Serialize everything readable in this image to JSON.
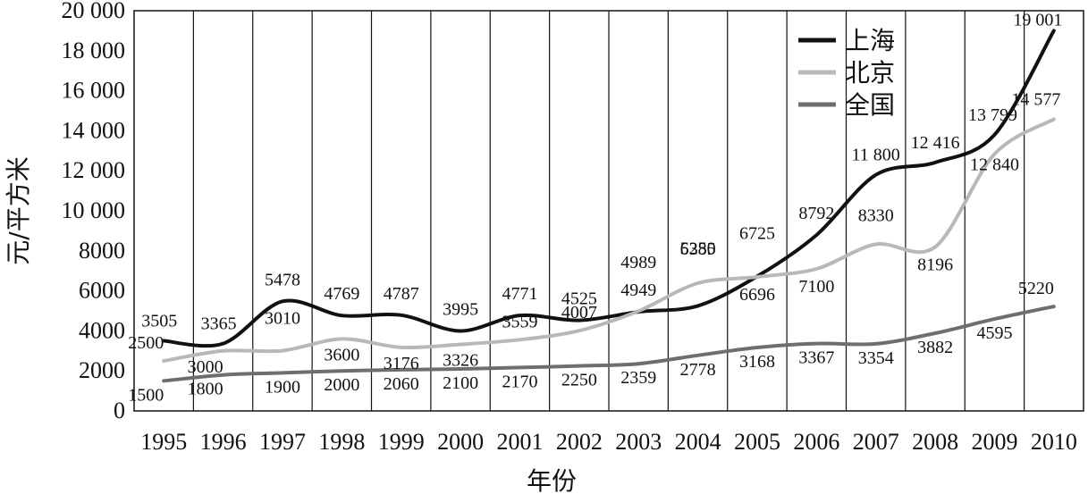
{
  "chart_data": {
    "type": "line",
    "title": "",
    "xlabel": "年份",
    "ylabel": "元/平方米",
    "x": [
      "1995",
      "1996",
      "1997",
      "1998",
      "1999",
      "2000",
      "2001",
      "2002",
      "2003",
      "2004",
      "2005",
      "2006",
      "2007",
      "2008",
      "2009",
      "2010"
    ],
    "ylim": [
      0,
      20000
    ],
    "y_ticks": [
      0,
      2000,
      4000,
      6000,
      8000,
      10000,
      12000,
      14000,
      16000,
      18000,
      20000
    ],
    "y_tick_labels": [
      "0",
      "2000",
      "4000",
      "6000",
      "8000",
      "10 000",
      "12 000",
      "14 000",
      "16 000",
      "18 000",
      "20 000"
    ],
    "grid": "vertical",
    "legend_position": "top-right",
    "series": [
      {
        "name": "上海",
        "color": "#111111",
        "values": [
          3505,
          3365,
          5478,
          4769,
          4787,
          3995,
          4771,
          4525,
          4949,
          5250,
          6725,
          8792,
          11800,
          12416,
          13799,
          19001
        ],
        "labels": [
          "3505",
          "3365",
          "5478",
          "4769",
          "4787",
          "3995",
          "4771",
          "4525",
          "4949",
          "5250",
          "6725",
          "8792",
          "11 800",
          "12 416",
          "13 799",
          "19 001"
        ]
      },
      {
        "name": "北京",
        "color": "#b8b8b8",
        "values": [
          2500,
          3000,
          3010,
          3600,
          3176,
          3326,
          3559,
          4007,
          4989,
          6385,
          6696,
          7100,
          8330,
          8196,
          12840,
          14577
        ],
        "labels": [
          "2500",
          "3000",
          "3010",
          "3600",
          "3176",
          "3326",
          "3559",
          "4007",
          "4989",
          "6385",
          "6696",
          "7100",
          "8330",
          "8196",
          "12 840",
          "14 577"
        ]
      },
      {
        "name": "全国",
        "color": "#6e6e6e",
        "values": [
          1500,
          1800,
          1900,
          2000,
          2060,
          2100,
          2170,
          2250,
          2359,
          2778,
          3168,
          3367,
          3354,
          3882,
          4595,
          5220
        ],
        "labels": [
          "1500",
          "1800",
          "1900",
          "2000",
          "2060",
          "2100",
          "2170",
          "2250",
          "2359",
          "2778",
          "3168",
          "3367",
          "3354",
          "3882",
          "4595",
          "5220"
        ]
      }
    ]
  }
}
